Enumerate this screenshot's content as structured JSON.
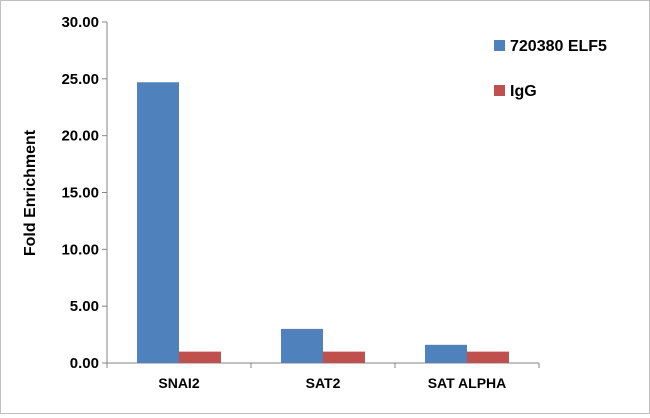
{
  "chart_data": {
    "type": "bar",
    "categories": [
      "SNAI2",
      "SAT2",
      "SAT ALPHA"
    ],
    "series": [
      {
        "name": "720380 ELF5",
        "values": [
          24.7,
          3.0,
          1.6
        ],
        "color": "#4f81bd"
      },
      {
        "name": "IgG",
        "values": [
          1.0,
          1.0,
          1.0
        ],
        "color": "#c0504d"
      }
    ],
    "ylabel": "Fold Enrichment",
    "xlabel": "",
    "ylim": [
      0,
      30
    ],
    "yticks": [
      "0.00",
      "5.00",
      "10.00",
      "15.00",
      "20.00",
      "25.00",
      "30.00"
    ],
    "grid": false,
    "legend_position": "top-right"
  }
}
